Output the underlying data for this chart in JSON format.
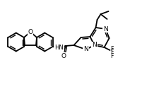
{
  "bg_color": "#ffffff",
  "bond_color": "#000000",
  "bw": 1.3,
  "fs": 6.5,
  "figsize": [
    2.25,
    1.33
  ],
  "dpi": 100,
  "xlim": [
    0,
    225
  ],
  "ylim": [
    0,
    133
  ]
}
